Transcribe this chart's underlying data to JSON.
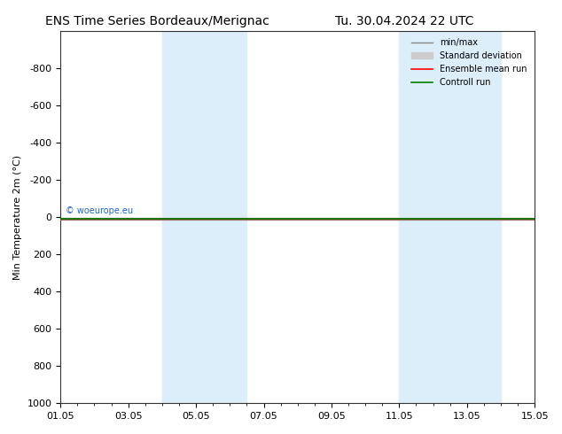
{
  "title_left": "ENS Time Series Bordeaux/Merignac",
  "title_right": "Tu. 30.04.2024 22 UTC",
  "ylabel": "Min Temperature 2m (°C)",
  "ylim_bottom": 1000,
  "ylim_top": -1000,
  "yticks": [
    -800,
    -600,
    -400,
    -200,
    0,
    200,
    400,
    600,
    800,
    1000
  ],
  "xtick_labels": [
    "01.05",
    "03.05",
    "05.05",
    "07.05",
    "09.05",
    "11.05",
    "13.05",
    "15.05"
  ],
  "xtick_positions": [
    0,
    2,
    4,
    6,
    8,
    10,
    12,
    14
  ],
  "shade_bands": [
    {
      "x_start": 3.0,
      "x_end": 5.5
    },
    {
      "x_start": 10.0,
      "x_end": 13.0
    }
  ],
  "shade_color": "#dceef9",
  "line_y": 10.0,
  "control_y": 8.0,
  "minmax_high": 15.0,
  "minmax_low": 5.0,
  "std_high": 13.0,
  "std_low": 7.0,
  "ensemble_color": "#ff0000",
  "control_color": "#008000",
  "minmax_color": "#888888",
  "std_color": "#cccccc",
  "watermark": "© woeurope.eu",
  "watermark_color": "#0055cc",
  "background_color": "#ffffff",
  "title_fontsize": 10,
  "tick_fontsize": 8,
  "ylabel_fontsize": 8
}
